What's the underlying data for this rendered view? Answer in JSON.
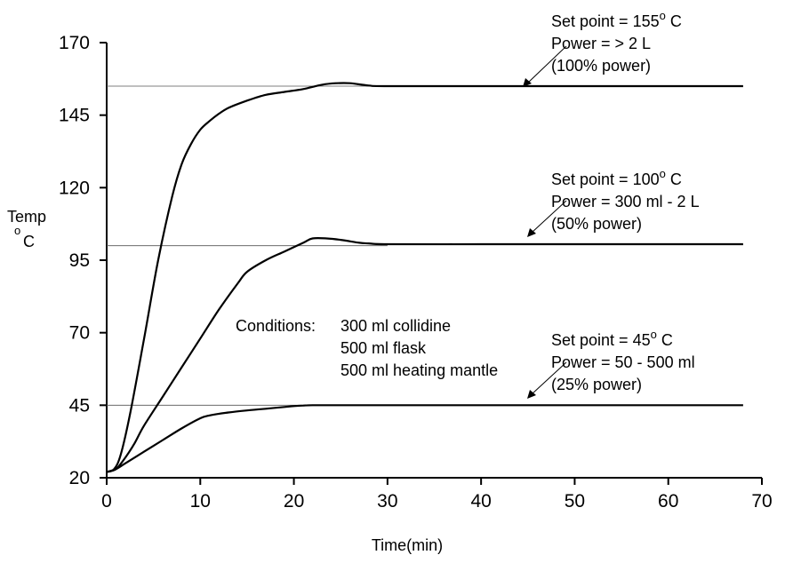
{
  "chart_data": {
    "type": "line",
    "xlabel": "Time(min)",
    "ylabel": "Temp",
    "ylabel_unit": "o",
    "ylabel_unit2": "C",
    "xlim": [
      0,
      70
    ],
    "ylim": [
      20,
      170
    ],
    "x_ticks": [
      0,
      10,
      20,
      30,
      40,
      50,
      60,
      70
    ],
    "y_ticks": [
      20,
      45,
      70,
      95,
      120,
      145,
      170
    ],
    "grid": false,
    "series": [
      {
        "id": "s155",
        "setpoint": 155,
        "x": [
          0,
          0.8,
          1.5,
          2.5,
          4,
          5.5,
          7,
          8,
          9,
          10,
          11,
          12,
          13,
          15,
          17,
          19,
          21,
          23,
          24.5,
          26,
          28,
          30,
          40,
          50,
          60,
          68
        ],
        "y": [
          22,
          23,
          28,
          42,
          68,
          95,
          117,
          128,
          135,
          140,
          143,
          145.5,
          147.5,
          150,
          152,
          153,
          154,
          155.5,
          156,
          156,
          155.2,
          155,
          155,
          155,
          155,
          155
        ]
      },
      {
        "id": "s100",
        "setpoint": 100,
        "x": [
          0,
          1,
          2,
          3,
          4,
          6,
          8,
          10,
          12,
          14,
          15,
          17,
          19,
          21,
          22,
          23.5,
          25,
          27,
          28,
          30,
          40,
          50,
          60,
          68
        ],
        "y": [
          22,
          23,
          27,
          32,
          38,
          48,
          58,
          68,
          78,
          87,
          91,
          95,
          98,
          101,
          102.5,
          102.5,
          102,
          101,
          100.8,
          100.5,
          100.5,
          100.5,
          100.5,
          100.5
        ]
      },
      {
        "id": "s45",
        "setpoint": 45,
        "x": [
          0,
          1,
          2,
          4,
          6,
          8,
          10,
          11,
          13,
          15,
          17,
          19,
          20,
          21,
          22,
          25,
          30,
          40,
          50,
          60,
          68
        ],
        "y": [
          22,
          23,
          25,
          29,
          33,
          37,
          40.5,
          41.5,
          42.5,
          43.2,
          43.8,
          44.4,
          44.7,
          44.9,
          45,
          45,
          45,
          45,
          45,
          45,
          45
        ]
      }
    ],
    "annotations": [
      {
        "id": "a155",
        "line1_prefix": "Set point = 155",
        "sup": "o",
        "line1_suffix": " C",
        "line2": "Power = > 2 L",
        "line3": "(100% power)"
      },
      {
        "id": "a100",
        "line1_prefix": "Set point = 100",
        "sup": "o",
        "line1_suffix": " C",
        "line2": "Power = 300 ml - 2 L",
        "line3": "(50% power)"
      },
      {
        "id": "a45",
        "line1_prefix": "Set point = 45",
        "sup": "o",
        "line1_suffix": " C",
        "line2": "Power = 50 - 500 ml",
        "line3": "(25% power)"
      }
    ],
    "conditions": {
      "label": "Conditions:",
      "items": [
        "300 ml collidine",
        "500 ml  flask",
        "500 ml heating mantle"
      ]
    }
  }
}
